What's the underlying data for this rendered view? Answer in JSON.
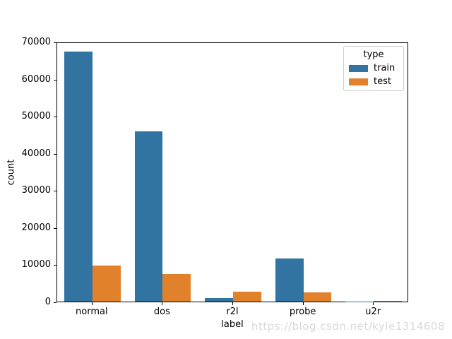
{
  "watermark": "https://blog.csdn.net/kyle1314608",
  "chart_data": {
    "type": "bar",
    "title": "",
    "xlabel": "label",
    "ylabel": "count",
    "categories": [
      "normal",
      "dos",
      "r2l",
      "probe",
      "u2r"
    ],
    "series": [
      {
        "name": "train",
        "color": "#3274a1",
        "values": [
          67343,
          45927,
          995,
          11656,
          52
        ]
      },
      {
        "name": "test",
        "color": "#e1812c",
        "values": [
          9711,
          7458,
          2754,
          2421,
          200
        ]
      }
    ],
    "ylim": [
      0,
      70000
    ],
    "yticks": [
      0,
      10000,
      20000,
      30000,
      40000,
      50000,
      60000,
      70000
    ],
    "grid": false,
    "legend": {
      "title": "type",
      "position": "upper right"
    }
  }
}
